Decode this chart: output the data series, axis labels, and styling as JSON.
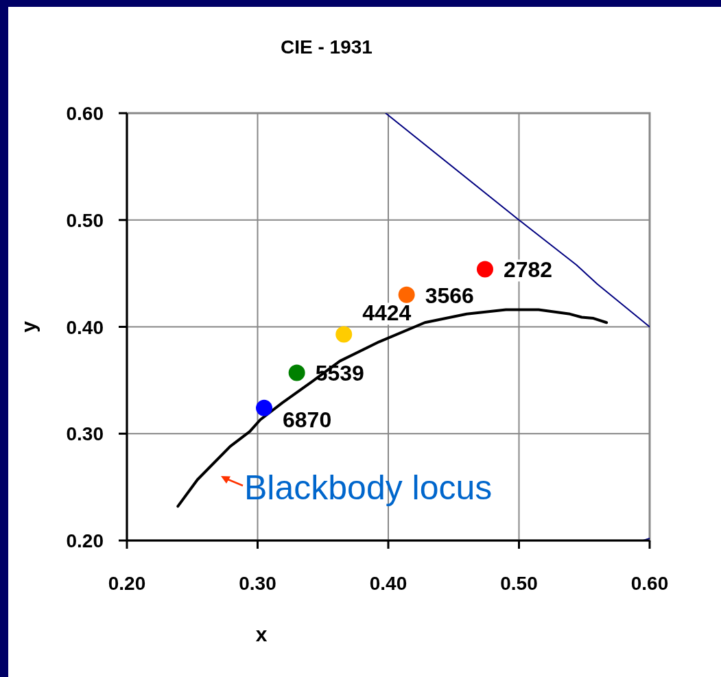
{
  "chart_data": {
    "type": "scatter",
    "title": "CIE - 1931",
    "xlabel": "x",
    "ylabel": "y",
    "xlim": [
      0.2,
      0.6
    ],
    "ylim": [
      0.2,
      0.6
    ],
    "xticks": [
      {
        "value": 0.2,
        "label": "0.20"
      },
      {
        "value": 0.3,
        "label": "0.30"
      },
      {
        "value": 0.4,
        "label": "0.40"
      },
      {
        "value": 0.5,
        "label": "0.50"
      },
      {
        "value": 0.6,
        "label": "0.60"
      }
    ],
    "yticks": [
      {
        "value": 0.2,
        "label": "0.20"
      },
      {
        "value": 0.3,
        "label": "0.30"
      },
      {
        "value": 0.4,
        "label": "0.40"
      },
      {
        "value": 0.5,
        "label": "0.50"
      },
      {
        "value": 0.6,
        "label": "0.60"
      }
    ],
    "grid": true,
    "legend": false,
    "series": [
      {
        "type": "line",
        "color": "#000000",
        "marker": "none",
        "line_style": "solid",
        "x": [
          0.239,
          0.254,
          0.279,
          0.294,
          0.302,
          0.319,
          0.342,
          0.363,
          0.393,
          0.428,
          0.46,
          0.49,
          0.515,
          0.539,
          0.548,
          0.557,
          0.567
        ],
        "values": [
          0.232,
          0.257,
          0.288,
          0.302,
          0.313,
          0.329,
          0.349,
          0.368,
          0.386,
          0.404,
          0.412,
          0.416,
          0.416,
          0.412,
          0.409,
          0.408,
          0.404
        ]
      },
      {
        "type": "line",
        "color": "#000080",
        "marker": "none",
        "line_style": "solid",
        "x": [
          0.398,
          0.5,
          0.544,
          0.56,
          0.6
        ],
        "values": [
          0.6,
          0.5,
          0.458,
          0.44,
          0.4
        ]
      },
      {
        "type": "line",
        "color": "#000080",
        "marker": "none",
        "line_style": "solid",
        "x": [
          0.595,
          0.6
        ],
        "values": [
          0.2,
          0.202
        ]
      },
      {
        "name": "6870",
        "color": "#0000ff",
        "marker": "circle",
        "x": [
          0.305
        ],
        "values": [
          0.324
        ]
      },
      {
        "name": "5539",
        "color": "#008000",
        "marker": "circle",
        "x": [
          0.33
        ],
        "values": [
          0.357
        ]
      },
      {
        "name": "4424",
        "color": "#ffcc00",
        "marker": "circle",
        "x": [
          0.366
        ],
        "values": [
          0.393
        ]
      },
      {
        "name": "3566",
        "color": "#ff6600",
        "marker": "circle",
        "x": [
          0.414
        ],
        "values": [
          0.43
        ]
      },
      {
        "name": "2782",
        "color": "#ff0000",
        "marker": "circle",
        "x": [
          0.474
        ],
        "values": [
          0.454
        ]
      }
    ],
    "annotations": [
      "Blackbody locus"
    ]
  }
}
